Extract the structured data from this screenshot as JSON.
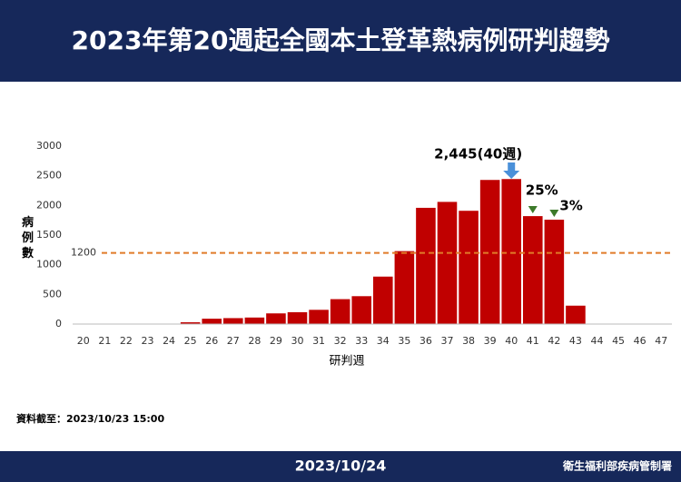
{
  "header": {
    "title": "2023年第20週起全國本土登革熱病例研判趨勢"
  },
  "chart_data": {
    "type": "bar",
    "categories": [
      "20",
      "21",
      "22",
      "23",
      "24",
      "25",
      "26",
      "27",
      "28",
      "29",
      "30",
      "31",
      "32",
      "33",
      "34",
      "35",
      "36",
      "37",
      "38",
      "39",
      "40",
      "41",
      "42",
      "43",
      "44",
      "45",
      "46",
      "47"
    ],
    "values": [
      0,
      0,
      0,
      0,
      0,
      30,
      90,
      100,
      110,
      180,
      200,
      240,
      420,
      470,
      800,
      1230,
      1960,
      2060,
      1910,
      2430,
      2445,
      1820,
      1760,
      310,
      0,
      0,
      0,
      0
    ],
    "color": "#c00000",
    "ylim": [
      0,
      3000
    ],
    "yticks": [
      0,
      500,
      1000,
      1500,
      2000,
      2500,
      3000
    ],
    "y_label": "病例數",
    "x_label": "研判週",
    "reference_line": {
      "value": 1200,
      "color": "#e07b29"
    },
    "annotations": [
      "2,445(40週)",
      "25%",
      "3%"
    ]
  },
  "footer": {
    "note": "資料截至：2023/10/23 15:00",
    "date": "2023/10/24",
    "org": "衛生福利部疾病管制署"
  }
}
